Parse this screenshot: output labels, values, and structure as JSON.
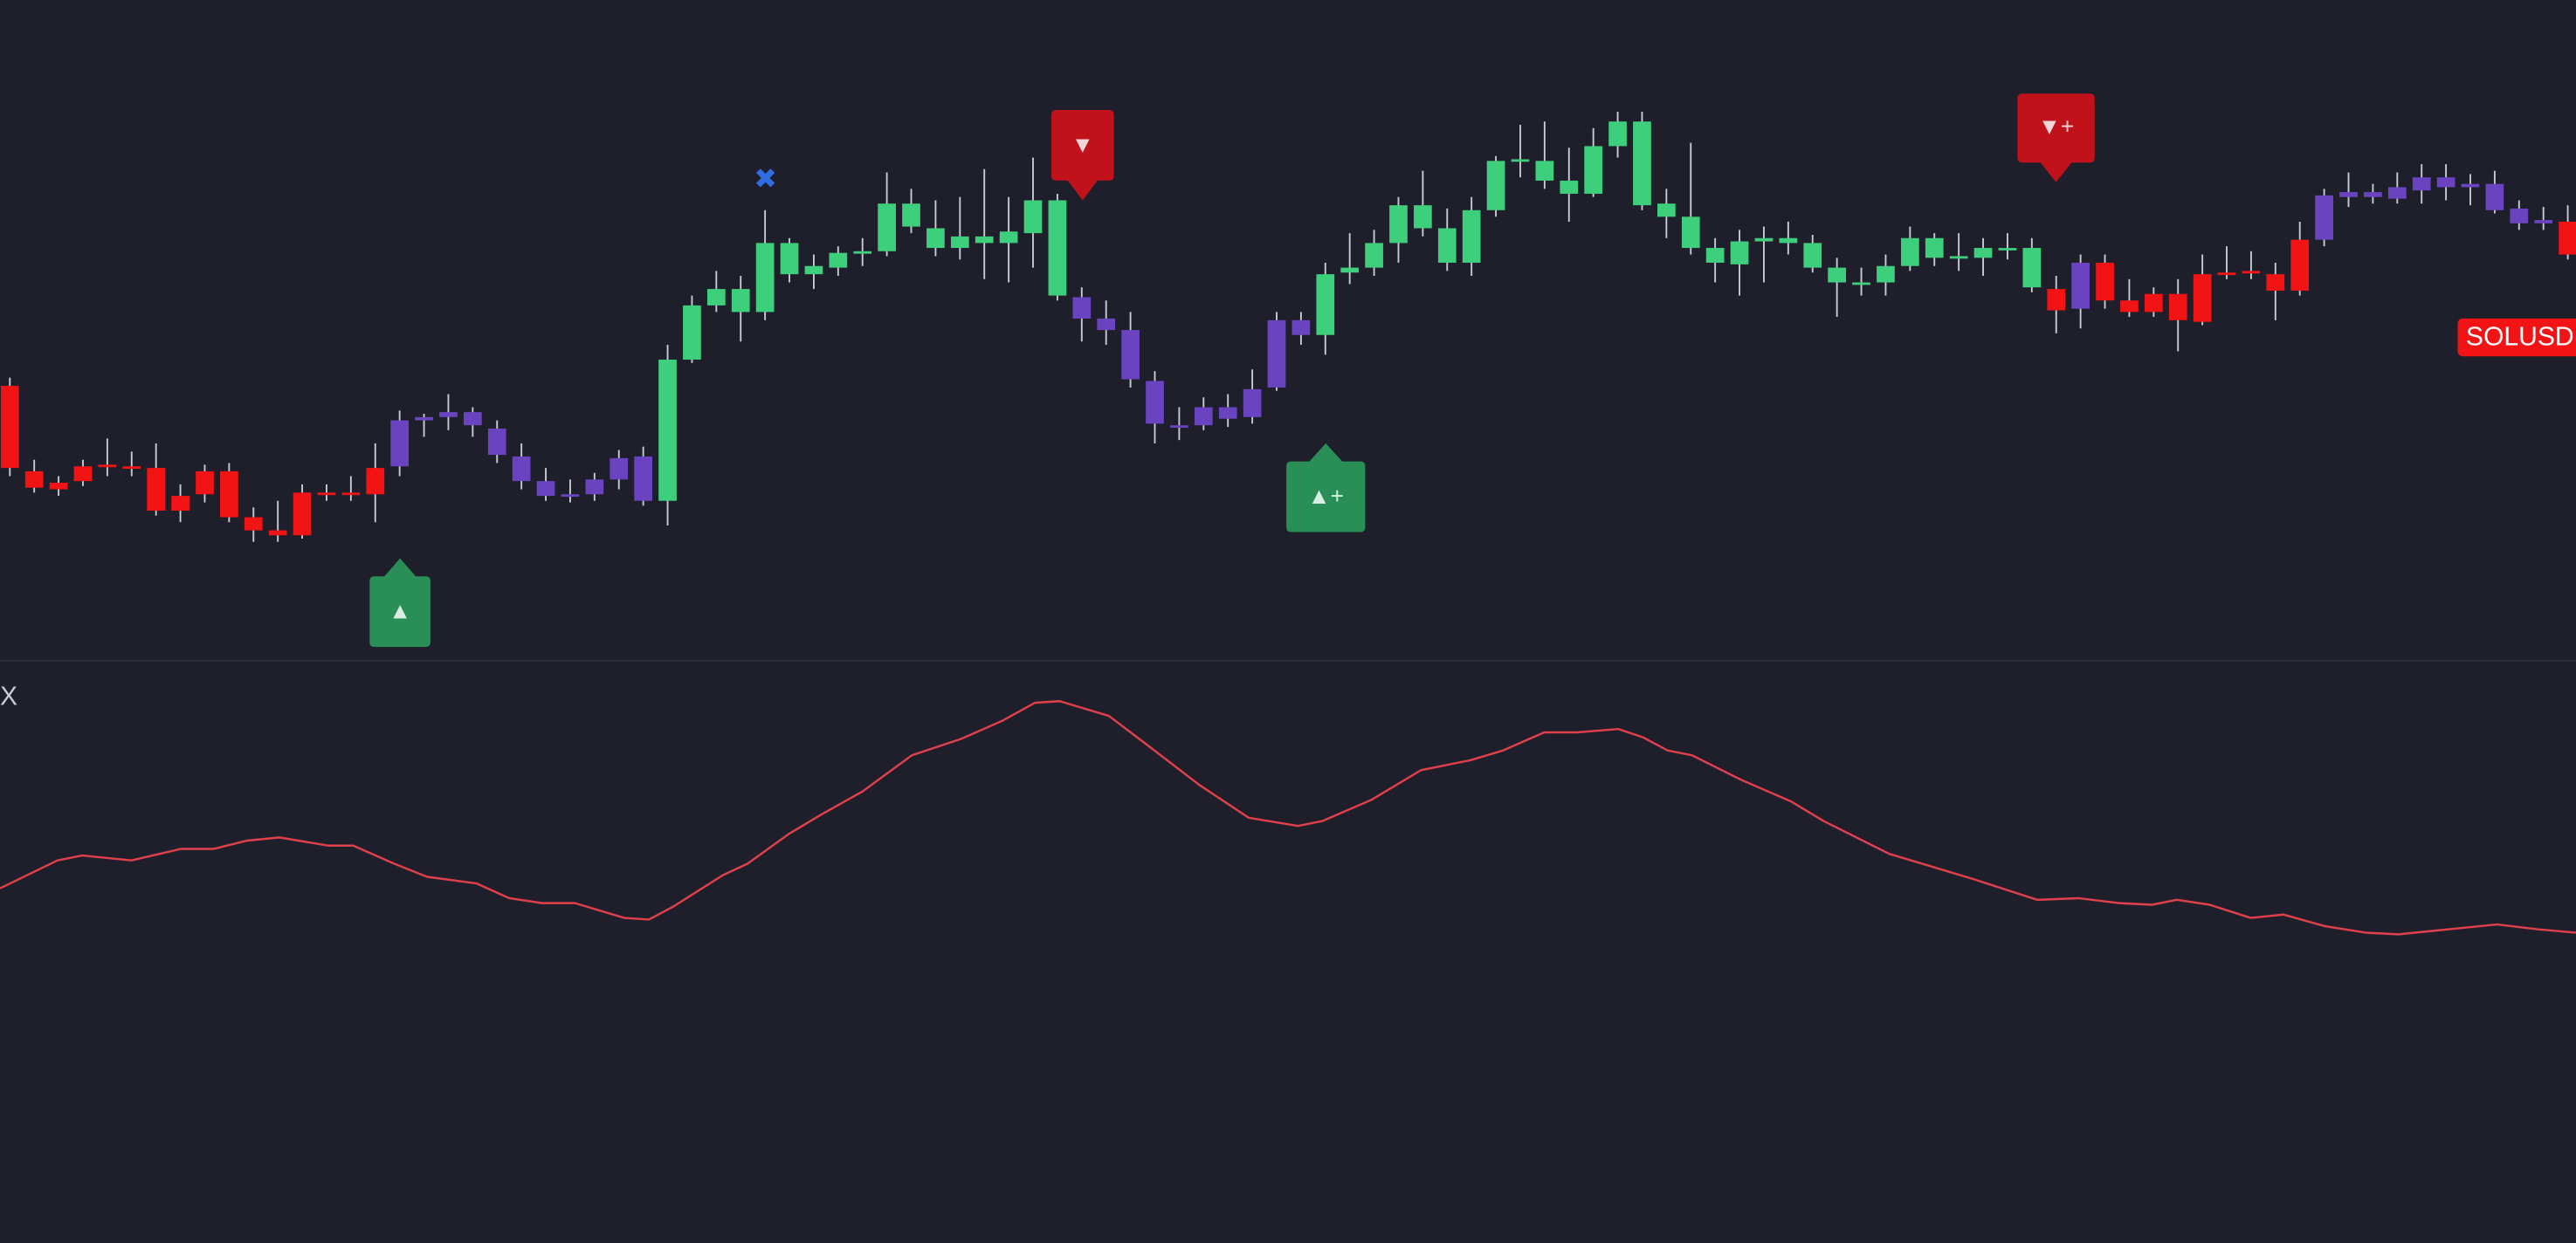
{
  "chart_data": [
    {
      "type": "candlestick",
      "symbol": "SOLUSD",
      "ylim": [
        0,
        402
      ],
      "colors": [
        "#f21414",
        "#f21414",
        "#f21414",
        "#f21414",
        "#f21414",
        "#f21414",
        "#f21414",
        "#f21414",
        "#f21414",
        "#f21414",
        "#f21414",
        "#f21414",
        "#f21414",
        "#f21414",
        "#f21414",
        "#f21414",
        "#6a44c0",
        "#6a44c0",
        "#6a44c0",
        "#6a44c0",
        "#6a44c0",
        "#6a44c0",
        "#6a44c0",
        "#6a44c0",
        "#6a44c0",
        "#6a44c0",
        "#6a44c0",
        "#3ecf7d",
        "#3ecf7d",
        "#3ecf7d",
        "#3ecf7d",
        "#3ecf7d",
        "#3ecf7d",
        "#3ecf7d",
        "#3ecf7d",
        "#3ecf7d",
        "#3ecf7d",
        "#3ecf7d",
        "#3ecf7d",
        "#3ecf7d",
        "#3ecf7d",
        "#3ecf7d",
        "#3ecf7d",
        "#3ecf7d",
        "#6a44c0",
        "#6a44c0",
        "#6a44c0",
        "#6a44c0",
        "#6a44c0",
        "#6a44c0",
        "#6a44c0",
        "#6a44c0",
        "#6a44c0",
        "#6a44c0",
        "#3ecf7d",
        "#3ecf7d",
        "#3ecf7d",
        "#3ecf7d",
        "#3ecf7d",
        "#3ecf7d",
        "#3ecf7d",
        "#3ecf7d",
        "#3ecf7d",
        "#3ecf7d",
        "#3ecf7d",
        "#3ecf7d",
        "#3ecf7d",
        "#3ecf7d",
        "#3ecf7d",
        "#3ecf7d",
        "#3ecf7d",
        "#3ecf7d",
        "#3ecf7d",
        "#3ecf7d",
        "#3ecf7d",
        "#3ecf7d",
        "#3ecf7d",
        "#3ecf7d",
        "#3ecf7d",
        "#3ecf7d",
        "#3ecf7d",
        "#3ecf7d",
        "#3ecf7d",
        "#3ecf7d",
        "#f21414",
        "#6a44c0",
        "#f21414",
        "#f21414",
        "#f21414",
        "#f21414",
        "#f21414",
        "#f21414",
        "#f21414",
        "#f21414",
        "#f21414",
        "#6a44c0",
        "#6a44c0",
        "#6a44c0",
        "#6a44c0",
        "#6a44c0",
        "#6a44c0",
        "#6a44c0",
        "#6a44c0",
        "#6a44c0",
        "#6a44c0",
        "#f21414"
      ],
      "open": [
        167,
        115,
        108,
        118,
        119,
        118,
        117,
        100,
        115,
        115,
        87,
        79,
        102,
        102,
        102,
        117,
        118,
        146,
        148,
        151,
        141,
        124,
        109,
        101,
        101,
        110,
        124,
        97,
        183,
        216,
        212,
        212,
        235,
        235,
        239,
        248,
        249,
        264,
        251,
        251,
        254,
        254,
        260,
        222,
        221,
        208,
        201,
        170,
        143,
        143,
        147,
        148,
        166,
        198,
        198,
        236,
        239,
        254,
        263,
        242,
        242,
        274,
        304,
        292,
        284,
        284,
        313,
        277,
        270,
        251,
        242,
        241,
        255,
        254,
        239,
        230,
        229,
        230,
        240,
        245,
        245,
        245,
        250,
        227,
        226,
        214,
        242,
        219,
        223,
        223,
        235,
        236,
        237,
        235,
        256,
        256,
        282,
        282,
        281,
        286,
        294,
        290,
        290,
        275,
        268,
        267
      ],
      "high": [
        172,
        122,
        112,
        122,
        135,
        127,
        132,
        107,
        119,
        120,
        93,
        97,
        107,
        107,
        112,
        132,
        152,
        150,
        162,
        154,
        146,
        132,
        117,
        110,
        114,
        128,
        130,
        192,
        222,
        237,
        234,
        274,
        257,
        247,
        252,
        257,
        297,
        287,
        280,
        282,
        299,
        282,
        306,
        284,
        227,
        219,
        212,
        176,
        154,
        160,
        162,
        177,
        212,
        212,
        242,
        260,
        262,
        282,
        298,
        275,
        282,
        307,
        326,
        328,
        312,
        324,
        334,
        334,
        287,
        315,
        257,
        262,
        264,
        267,
        259,
        245,
        239,
        247,
        264,
        260,
        260,
        257,
        260,
        257,
        234,
        247,
        247,
        232,
        227,
        232,
        247,
        252,
        249,
        242,
        267,
        287,
        297,
        290,
        297,
        302,
        302,
        296,
        298,
        280,
        276,
        277
      ],
      "low": [
        112,
        102,
        100,
        106,
        112,
        112,
        88,
        84,
        96,
        84,
        72,
        72,
        74,
        97,
        97,
        84,
        112,
        136,
        140,
        136,
        120,
        104,
        97,
        96,
        97,
        104,
        94,
        82,
        181,
        212,
        194,
        207,
        230,
        226,
        234,
        240,
        246,
        260,
        246,
        244,
        232,
        230,
        239,
        219,
        194,
        192,
        166,
        132,
        134,
        140,
        142,
        144,
        164,
        192,
        186,
        229,
        234,
        242,
        258,
        237,
        234,
        270,
        294,
        287,
        267,
        282,
        306,
        274,
        257,
        247,
        230,
        222,
        230,
        247,
        236,
        209,
        222,
        222,
        237,
        240,
        237,
        234,
        244,
        224,
        199,
        202,
        214,
        209,
        209,
        188,
        204,
        232,
        232,
        207,
        222,
        252,
        276,
        278,
        278,
        278,
        280,
        277,
        272,
        262,
        262,
        244
      ],
      "close": [
        117,
        105,
        104,
        109,
        118,
        117,
        91,
        91,
        101,
        87,
        79,
        76,
        76,
        101,
        101,
        101,
        146,
        148,
        151,
        143,
        125,
        109,
        100,
        100,
        110,
        123,
        97,
        183,
        216,
        226,
        226,
        254,
        254,
        240,
        248,
        249,
        278,
        278,
        263,
        258,
        258,
        261,
        280,
        280,
        208,
        201,
        171,
        144,
        142,
        154,
        154,
        165,
        207,
        207,
        235,
        239,
        254,
        277,
        277,
        263,
        274,
        304,
        305,
        304,
        292,
        313,
        328,
        328,
        278,
        270,
        251,
        255,
        257,
        257,
        254,
        239,
        230,
        240,
        257,
        257,
        246,
        251,
        251,
        251,
        213,
        242,
        219,
        212,
        212,
        207,
        206,
        235,
        236,
        225,
        225,
        283,
        285,
        285,
        288,
        294,
        288,
        288,
        274,
        266,
        266,
        247
      ],
      "markers": [
        "✖",
        "▼",
        "▲",
        "▲+",
        "▼+"
      ]
    },
    {
      "type": "line",
      "label": "X",
      "color": "#e0404a",
      "xlim": [
        0,
        1568
      ],
      "ylim": [
        0,
        354
      ],
      "x": [
        0,
        35,
        50,
        80,
        110,
        130,
        150,
        170,
        200,
        215,
        240,
        260,
        290,
        310,
        330,
        350,
        380,
        395,
        410,
        440,
        455,
        480,
        500,
        525,
        555,
        585,
        610,
        630,
        645,
        675,
        700,
        730,
        760,
        790,
        805,
        835,
        865,
        895,
        915,
        940,
        960,
        985,
        1000,
        1015,
        1030,
        1060,
        1090,
        1110,
        1150,
        1200,
        1240,
        1265,
        1290,
        1310,
        1325,
        1345,
        1370,
        1390,
        1415,
        1440,
        1460,
        1490,
        1520,
        1545,
        1568
      ],
      "values": [
        216,
        233,
        236,
        233,
        240,
        240,
        245,
        247,
        242,
        242,
        231,
        223,
        219,
        210,
        207,
        207,
        198,
        197,
        205,
        224,
        231,
        249,
        261,
        275,
        297,
        307,
        318,
        329,
        330,
        321,
        302,
        279,
        259,
        254,
        257,
        270,
        288,
        294,
        300,
        311,
        311,
        313,
        308,
        300,
        297,
        282,
        269,
        257,
        237,
        222,
        209,
        210,
        207,
        206,
        209,
        206,
        198,
        200,
        193,
        189,
        188,
        191,
        194,
        191,
        189
      ]
    }
  ]
}
